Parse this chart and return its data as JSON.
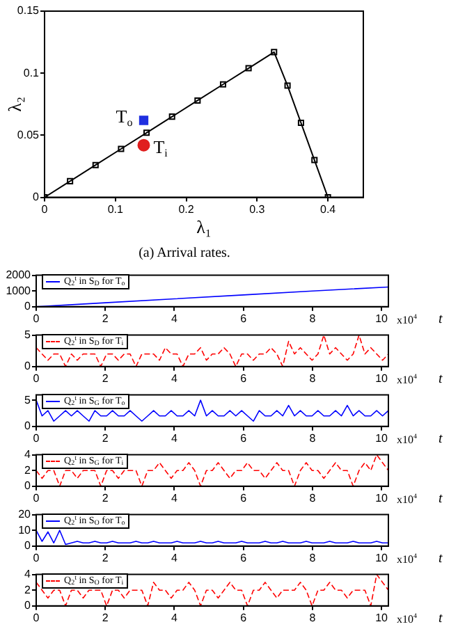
{
  "chart_data": [
    {
      "type": "line",
      "title": "(a) Arrival rates.",
      "xlabel": "λ₁",
      "ylabel": "λ₂",
      "xlim": [
        0,
        0.45
      ],
      "ylim": [
        0,
        0.15
      ],
      "xticks": [
        0,
        0.1,
        0.2,
        0.3,
        0.4
      ],
      "yticks": [
        0,
        0.05,
        0.1,
        0.15
      ],
      "legend": false,
      "series": [
        {
          "color": "#000000",
          "marker": "square",
          "line_style": "solid",
          "x": [
            0,
            0.036,
            0.072,
            0.108,
            0.144,
            0.18,
            0.216,
            0.252,
            0.288,
            0.324,
            0.343,
            0.362,
            0.381,
            0.4
          ],
          "values": [
            0,
            0.013,
            0.026,
            0.039,
            0.052,
            0.065,
            0.078,
            0.091,
            0.104,
            0.117,
            0.09,
            0.06,
            0.03,
            0
          ]
        },
        {
          "type": "scatter",
          "name": "T$_{o}$",
          "color": "#1f2fe0",
          "marker": "square",
          "x": [
            0.14
          ],
          "values": [
            0.062
          ]
        },
        {
          "type": "scatter",
          "name": "T$_{i}$",
          "color": "#e01f1f",
          "marker": "circle",
          "x": [
            0.14
          ],
          "values": [
            0.042
          ]
        }
      ]
    },
    {
      "type": "line",
      "xlabel": "t",
      "xlim": [
        0,
        10.2
      ],
      "ylim": [
        0,
        2000
      ],
      "xticks": [
        0,
        2,
        4,
        6,
        8,
        10
      ],
      "yticks": [
        0,
        1000,
        2000
      ],
      "legend": "top left",
      "annotations": [
        "x10$^{4}$"
      ],
      "marker": "none",
      "series": [
        {
          "name": "Q$_{2}$$^{t}$ in S$_{D}$ for T$_{o}$",
          "color": "#0000ff",
          "line_style": "solid",
          "x": [
            0,
            2,
            4,
            6,
            8,
            10.2
          ],
          "values": [
            0,
            250,
            500,
            750,
            1000,
            1250
          ]
        }
      ]
    },
    {
      "type": "line",
      "xlabel": "t",
      "xlim": [
        0,
        10.2
      ],
      "ylim": [
        0,
        5
      ],
      "xticks": [
        0,
        2,
        4,
        6,
        8,
        10
      ],
      "yticks": [
        0,
        5
      ],
      "legend": "top left",
      "annotations": [
        "x10$^{4}$"
      ],
      "marker": "none",
      "x": [
        0,
        0.17,
        0.34,
        0.51,
        0.68,
        0.85,
        1.02,
        1.19,
        1.36,
        1.53,
        1.7,
        1.87,
        2.04,
        2.21,
        2.38,
        2.55,
        2.72,
        2.89,
        3.06,
        3.23,
        3.4,
        3.57,
        3.74,
        3.91,
        4.08,
        4.25,
        4.42,
        4.59,
        4.76,
        4.93,
        5.1,
        5.27,
        5.44,
        5.61,
        5.78,
        5.95,
        6.12,
        6.29,
        6.46,
        6.63,
        6.8,
        6.97,
        7.14,
        7.31,
        7.48,
        7.65,
        7.82,
        7.99,
        8.16,
        8.33,
        8.5,
        8.67,
        8.84,
        9.01,
        9.18,
        9.35,
        9.52,
        9.69,
        9.86,
        10.03,
        10.2
      ],
      "series": [
        {
          "name": "Q$_{2}$$^{t}$ in S$_{D}$ for T$_{i}$",
          "color": "#ff0000",
          "line_style": "dashed",
          "values": [
            3,
            2,
            1,
            2,
            2,
            0,
            2,
            1,
            2,
            2,
            2,
            0,
            2,
            2,
            1,
            2,
            2,
            0,
            2,
            2,
            2,
            1,
            3,
            2,
            2,
            0,
            2,
            2,
            3,
            1,
            2,
            2,
            3,
            2,
            0,
            2,
            2,
            1,
            2,
            2,
            3,
            2,
            0,
            4,
            2,
            3,
            2,
            1,
            2,
            5,
            2,
            3,
            2,
            1,
            2,
            5,
            2,
            3,
            2,
            1,
            2
          ]
        }
      ]
    },
    {
      "type": "line",
      "xlabel": "t",
      "xlim": [
        0,
        10.2
      ],
      "ylim": [
        0,
        6
      ],
      "xticks": [
        0,
        2,
        4,
        6,
        8,
        10
      ],
      "yticks": [
        0,
        5
      ],
      "legend": "top left",
      "annotations": [
        "x10$^{4}$"
      ],
      "marker": "none",
      "x": [
        0,
        0.17,
        0.34,
        0.51,
        0.68,
        0.85,
        1.02,
        1.19,
        1.36,
        1.53,
        1.7,
        1.87,
        2.04,
        2.21,
        2.38,
        2.55,
        2.72,
        2.89,
        3.06,
        3.23,
        3.4,
        3.57,
        3.74,
        3.91,
        4.08,
        4.25,
        4.42,
        4.59,
        4.76,
        4.93,
        5.1,
        5.27,
        5.44,
        5.61,
        5.78,
        5.95,
        6.12,
        6.29,
        6.46,
        6.63,
        6.8,
        6.97,
        7.14,
        7.31,
        7.48,
        7.65,
        7.82,
        7.99,
        8.16,
        8.33,
        8.5,
        8.67,
        8.84,
        9.01,
        9.18,
        9.35,
        9.52,
        9.69,
        9.86,
        10.03,
        10.2
      ],
      "series": [
        {
          "name": "Q$_{2}$$^{t}$ in S$_{G}$ for T$_{o}$",
          "color": "#0000ff",
          "line_style": "solid",
          "values": [
            5,
            2,
            3,
            1,
            2,
            3,
            2,
            3,
            2,
            1,
            3,
            2,
            2,
            3,
            2,
            2,
            3,
            2,
            1,
            2,
            3,
            2,
            2,
            3,
            2,
            2,
            3,
            2,
            5,
            2,
            3,
            2,
            2,
            3,
            2,
            3,
            2,
            1,
            3,
            2,
            2,
            3,
            2,
            4,
            2,
            3,
            2,
            2,
            3,
            2,
            2,
            3,
            2,
            4,
            2,
            3,
            2,
            2,
            3,
            2,
            3
          ]
        }
      ]
    },
    {
      "type": "line",
      "xlabel": "t",
      "xlim": [
        0,
        10.2
      ],
      "ylim": [
        0,
        4
      ],
      "xticks": [
        0,
        2,
        4,
        6,
        8,
        10
      ],
      "yticks": [
        0,
        2,
        4
      ],
      "legend": "top left",
      "annotations": [
        "x10$^{4}$"
      ],
      "marker": "none",
      "x": [
        0,
        0.17,
        0.34,
        0.51,
        0.68,
        0.85,
        1.02,
        1.19,
        1.36,
        1.53,
        1.7,
        1.87,
        2.04,
        2.21,
        2.38,
        2.55,
        2.72,
        2.89,
        3.06,
        3.23,
        3.4,
        3.57,
        3.74,
        3.91,
        4.08,
        4.25,
        4.42,
        4.59,
        4.76,
        4.93,
        5.1,
        5.27,
        5.44,
        5.61,
        5.78,
        5.95,
        6.12,
        6.29,
        6.46,
        6.63,
        6.8,
        6.97,
        7.14,
        7.31,
        7.48,
        7.65,
        7.82,
        7.99,
        8.16,
        8.33,
        8.5,
        8.67,
        8.84,
        9.01,
        9.18,
        9.35,
        9.52,
        9.69,
        9.86,
        10.03,
        10.2
      ],
      "series": [
        {
          "name": "Q$_{2}$$^{t}$ in S$_{G}$ for T$_{i}$",
          "color": "#ff0000",
          "line_style": "dashed",
          "values": [
            2,
            1,
            2,
            2,
            0,
            2,
            2,
            1,
            2,
            2,
            2,
            0,
            2,
            2,
            1,
            2,
            2,
            2,
            0,
            2,
            2,
            3,
            2,
            1,
            2,
            2,
            3,
            2,
            0,
            2,
            2,
            3,
            2,
            1,
            2,
            2,
            3,
            2,
            2,
            1,
            2,
            3,
            2,
            2,
            0,
            2,
            3,
            2,
            2,
            1,
            2,
            3,
            2,
            2,
            0,
            2,
            3,
            2,
            4,
            3,
            2
          ]
        }
      ]
    },
    {
      "type": "line",
      "xlabel": "t",
      "xlim": [
        0,
        10.2
      ],
      "ylim": [
        0,
        20
      ],
      "xticks": [
        0,
        2,
        4,
        6,
        8,
        10
      ],
      "yticks": [
        0,
        10,
        20
      ],
      "legend": "top left",
      "annotations": [
        "x10$^{4}$"
      ],
      "marker": "none",
      "x": [
        0,
        0.17,
        0.34,
        0.51,
        0.68,
        0.85,
        1.02,
        1.19,
        1.36,
        1.53,
        1.7,
        1.87,
        2.04,
        2.21,
        2.38,
        2.55,
        2.72,
        2.89,
        3.06,
        3.23,
        3.4,
        3.57,
        3.74,
        3.91,
        4.08,
        4.25,
        4.42,
        4.59,
        4.76,
        4.93,
        5.1,
        5.27,
        5.44,
        5.61,
        5.78,
        5.95,
        6.12,
        6.29,
        6.46,
        6.63,
        6.8,
        6.97,
        7.14,
        7.31,
        7.48,
        7.65,
        7.82,
        7.99,
        8.16,
        8.33,
        8.5,
        8.67,
        8.84,
        9.01,
        9.18,
        9.35,
        9.52,
        9.69,
        9.86,
        10.03,
        10.2
      ],
      "series": [
        {
          "name": "Q$_{2}$$^{t}$ in S$_{O}$ for T$_{o}$",
          "color": "#0000ff",
          "line_style": "solid",
          "values": [
            10,
            3,
            9,
            2,
            10,
            1,
            2,
            3,
            2,
            2,
            3,
            2,
            2,
            3,
            2,
            2,
            2,
            3,
            2,
            2,
            3,
            2,
            2,
            2,
            3,
            2,
            2,
            2,
            3,
            2,
            2,
            3,
            2,
            2,
            2,
            3,
            2,
            2,
            2,
            3,
            2,
            2,
            3,
            2,
            2,
            2,
            3,
            2,
            2,
            2,
            3,
            2,
            2,
            2,
            3,
            2,
            2,
            2,
            3,
            2,
            2
          ]
        }
      ]
    },
    {
      "type": "line",
      "xlabel": "t",
      "xlim": [
        0,
        10.2
      ],
      "ylim": [
        0,
        4
      ],
      "xticks": [
        0,
        2,
        4,
        6,
        8,
        10
      ],
      "yticks": [
        0,
        2,
        4
      ],
      "legend": "top left",
      "annotations": [
        "x10$^{4}$"
      ],
      "marker": "none",
      "x": [
        0,
        0.17,
        0.34,
        0.51,
        0.68,
        0.85,
        1.02,
        1.19,
        1.36,
        1.53,
        1.7,
        1.87,
        2.04,
        2.21,
        2.38,
        2.55,
        2.72,
        2.89,
        3.06,
        3.23,
        3.4,
        3.57,
        3.74,
        3.91,
        4.08,
        4.25,
        4.42,
        4.59,
        4.76,
        4.93,
        5.1,
        5.27,
        5.44,
        5.61,
        5.78,
        5.95,
        6.12,
        6.29,
        6.46,
        6.63,
        6.8,
        6.97,
        7.14,
        7.31,
        7.48,
        7.65,
        7.82,
        7.99,
        8.16,
        8.33,
        8.5,
        8.67,
        8.84,
        9.01,
        9.18,
        9.35,
        9.52,
        9.69,
        9.86,
        10.03,
        10.2
      ],
      "series": [
        {
          "name": "Q$_{2}$$^{t}$ in S$_{O}$ for T$_{i}$",
          "color": "#ff0000",
          "line_style": "dashed",
          "values": [
            3,
            2,
            1,
            2,
            2,
            0,
            2,
            2,
            1,
            2,
            2,
            2,
            0,
            2,
            2,
            1,
            2,
            2,
            2,
            0,
            3,
            2,
            2,
            1,
            2,
            2,
            3,
            2,
            0,
            2,
            2,
            1,
            2,
            3,
            2,
            2,
            0,
            2,
            2,
            3,
            2,
            1,
            2,
            2,
            2,
            3,
            2,
            0,
            2,
            2,
            3,
            2,
            2,
            1,
            2,
            2,
            2,
            0,
            4,
            3,
            2
          ]
        }
      ]
    }
  ]
}
